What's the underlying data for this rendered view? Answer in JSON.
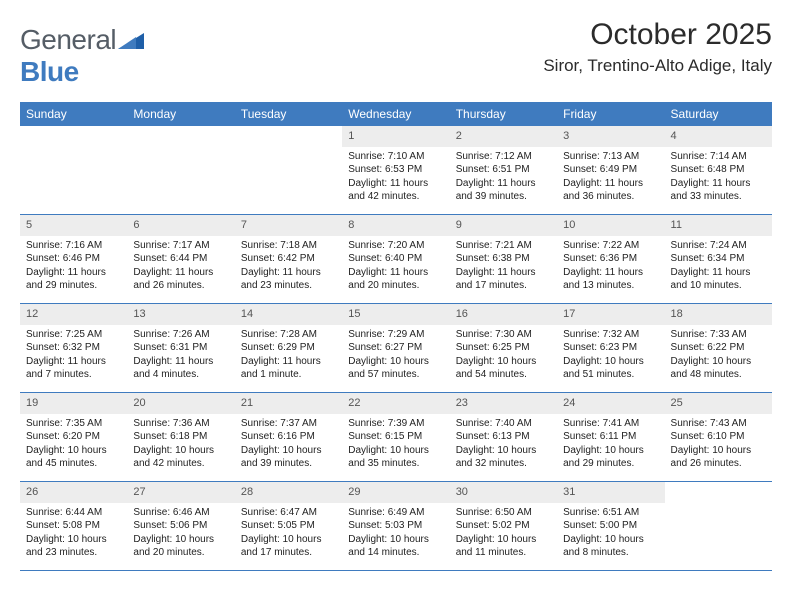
{
  "brand": {
    "part1": "General",
    "part2": "Blue"
  },
  "title": "October 2025",
  "location": "Siror, Trentino-Alto Adige, Italy",
  "colors": {
    "header_bg": "#3f7bbf",
    "header_text": "#ffffff",
    "daynum_bg": "#ededed",
    "body_bg": "#ffffff",
    "rule": "#3f7bbf"
  },
  "dow": [
    "Sunday",
    "Monday",
    "Tuesday",
    "Wednesday",
    "Thursday",
    "Friday",
    "Saturday"
  ],
  "weeks": [
    [
      null,
      null,
      null,
      {
        "n": "1",
        "sr": "7:10 AM",
        "ss": "6:53 PM",
        "dl": "11 hours and 42 minutes."
      },
      {
        "n": "2",
        "sr": "7:12 AM",
        "ss": "6:51 PM",
        "dl": "11 hours and 39 minutes."
      },
      {
        "n": "3",
        "sr": "7:13 AM",
        "ss": "6:49 PM",
        "dl": "11 hours and 36 minutes."
      },
      {
        "n": "4",
        "sr": "7:14 AM",
        "ss": "6:48 PM",
        "dl": "11 hours and 33 minutes."
      }
    ],
    [
      {
        "n": "5",
        "sr": "7:16 AM",
        "ss": "6:46 PM",
        "dl": "11 hours and 29 minutes."
      },
      {
        "n": "6",
        "sr": "7:17 AM",
        "ss": "6:44 PM",
        "dl": "11 hours and 26 minutes."
      },
      {
        "n": "7",
        "sr": "7:18 AM",
        "ss": "6:42 PM",
        "dl": "11 hours and 23 minutes."
      },
      {
        "n": "8",
        "sr": "7:20 AM",
        "ss": "6:40 PM",
        "dl": "11 hours and 20 minutes."
      },
      {
        "n": "9",
        "sr": "7:21 AM",
        "ss": "6:38 PM",
        "dl": "11 hours and 17 minutes."
      },
      {
        "n": "10",
        "sr": "7:22 AM",
        "ss": "6:36 PM",
        "dl": "11 hours and 13 minutes."
      },
      {
        "n": "11",
        "sr": "7:24 AM",
        "ss": "6:34 PM",
        "dl": "11 hours and 10 minutes."
      }
    ],
    [
      {
        "n": "12",
        "sr": "7:25 AM",
        "ss": "6:32 PM",
        "dl": "11 hours and 7 minutes."
      },
      {
        "n": "13",
        "sr": "7:26 AM",
        "ss": "6:31 PM",
        "dl": "11 hours and 4 minutes."
      },
      {
        "n": "14",
        "sr": "7:28 AM",
        "ss": "6:29 PM",
        "dl": "11 hours and 1 minute."
      },
      {
        "n": "15",
        "sr": "7:29 AM",
        "ss": "6:27 PM",
        "dl": "10 hours and 57 minutes."
      },
      {
        "n": "16",
        "sr": "7:30 AM",
        "ss": "6:25 PM",
        "dl": "10 hours and 54 minutes."
      },
      {
        "n": "17",
        "sr": "7:32 AM",
        "ss": "6:23 PM",
        "dl": "10 hours and 51 minutes."
      },
      {
        "n": "18",
        "sr": "7:33 AM",
        "ss": "6:22 PM",
        "dl": "10 hours and 48 minutes."
      }
    ],
    [
      {
        "n": "19",
        "sr": "7:35 AM",
        "ss": "6:20 PM",
        "dl": "10 hours and 45 minutes."
      },
      {
        "n": "20",
        "sr": "7:36 AM",
        "ss": "6:18 PM",
        "dl": "10 hours and 42 minutes."
      },
      {
        "n": "21",
        "sr": "7:37 AM",
        "ss": "6:16 PM",
        "dl": "10 hours and 39 minutes."
      },
      {
        "n": "22",
        "sr": "7:39 AM",
        "ss": "6:15 PM",
        "dl": "10 hours and 35 minutes."
      },
      {
        "n": "23",
        "sr": "7:40 AM",
        "ss": "6:13 PM",
        "dl": "10 hours and 32 minutes."
      },
      {
        "n": "24",
        "sr": "7:41 AM",
        "ss": "6:11 PM",
        "dl": "10 hours and 29 minutes."
      },
      {
        "n": "25",
        "sr": "7:43 AM",
        "ss": "6:10 PM",
        "dl": "10 hours and 26 minutes."
      }
    ],
    [
      {
        "n": "26",
        "sr": "6:44 AM",
        "ss": "5:08 PM",
        "dl": "10 hours and 23 minutes."
      },
      {
        "n": "27",
        "sr": "6:46 AM",
        "ss": "5:06 PM",
        "dl": "10 hours and 20 minutes."
      },
      {
        "n": "28",
        "sr": "6:47 AM",
        "ss": "5:05 PM",
        "dl": "10 hours and 17 minutes."
      },
      {
        "n": "29",
        "sr": "6:49 AM",
        "ss": "5:03 PM",
        "dl": "10 hours and 14 minutes."
      },
      {
        "n": "30",
        "sr": "6:50 AM",
        "ss": "5:02 PM",
        "dl": "10 hours and 11 minutes."
      },
      {
        "n": "31",
        "sr": "6:51 AM",
        "ss": "5:00 PM",
        "dl": "10 hours and 8 minutes."
      },
      null
    ]
  ],
  "labels": {
    "sunrise": "Sunrise:",
    "sunset": "Sunset:",
    "daylight": "Daylight:"
  }
}
